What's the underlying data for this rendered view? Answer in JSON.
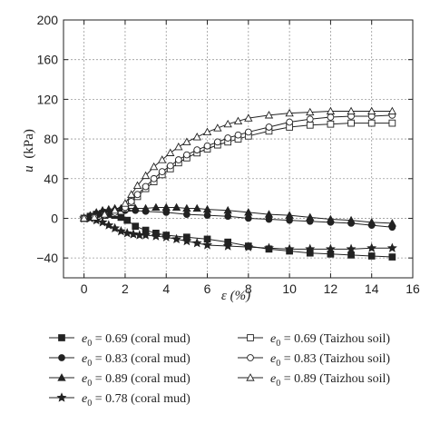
{
  "chart_data": {
    "type": "line",
    "xlabel": "ε (%)",
    "ylabel_symbol": "u",
    "ylabel_unit": "(kPa)",
    "xlim": [
      -1,
      16
    ],
    "ylim": [
      -60,
      200
    ],
    "xticks": [
      0,
      2,
      4,
      6,
      8,
      10,
      12,
      14,
      16
    ],
    "yticks": [
      -40,
      0,
      40,
      80,
      120,
      160,
      200
    ],
    "grid": true,
    "legend": {
      "placement": "bottom",
      "columns": 2
    },
    "series": [
      {
        "name": "e0 = 0.69 (coral mud)",
        "label_symbol": "e",
        "label_subscript": "0",
        "label_text": " = 0.69 (coral mud)",
        "marker": "square",
        "filled": true,
        "x": [
          0,
          0.3,
          0.6,
          0.9,
          1.2,
          1.5,
          1.8,
          2.1,
          2.5,
          3,
          3.5,
          4,
          5,
          6,
          7,
          8,
          9,
          10,
          11,
          12,
          13,
          14,
          15
        ],
        "y": [
          0,
          2,
          4,
          5,
          4,
          3,
          1,
          -2,
          -8,
          -12,
          -15,
          -17,
          -19,
          -21,
          -24,
          -28,
          -31,
          -33,
          -35,
          -36,
          -37,
          -38,
          -39
        ]
      },
      {
        "name": "e0 = 0.83 (coral mud)",
        "label_symbol": "e",
        "label_subscript": "0",
        "label_text": " = 0.83 (coral mud)",
        "marker": "circle",
        "filled": true,
        "x": [
          0,
          0.3,
          0.6,
          1,
          1.5,
          2,
          2.5,
          3,
          4,
          5,
          6,
          7,
          8,
          9,
          10,
          11,
          12,
          13,
          14,
          15
        ],
        "y": [
          0,
          2,
          4,
          6,
          7,
          8,
          8,
          7,
          6,
          4,
          3,
          2,
          0,
          -1,
          -2,
          -3,
          -4,
          -5,
          -7,
          -9
        ]
      },
      {
        "name": "e0 = 0.89 (coral mud)",
        "label_symbol": "e",
        "label_subscript": "0",
        "label_text": " = 0.89 (coral mud)",
        "marker": "triangle",
        "filled": true,
        "x": [
          0,
          0.3,
          0.6,
          0.9,
          1.2,
          1.5,
          1.8,
          2.1,
          2.5,
          3,
          3.5,
          4,
          4.5,
          5,
          5.5,
          6,
          7,
          8,
          9,
          10,
          11,
          12,
          13,
          14,
          15
        ],
        "y": [
          0,
          3,
          6,
          8,
          9,
          10,
          10,
          10,
          10,
          10,
          11,
          11,
          11,
          10,
          10,
          9,
          8,
          6,
          4,
          3,
          1,
          -1,
          -2,
          -4,
          -5
        ]
      },
      {
        "name": "e0 = 0.78 (coral mud)",
        "label_symbol": "e",
        "label_subscript": "0",
        "label_text": " = 0.78 (coral mud)",
        "marker": "star",
        "filled": true,
        "x": [
          0,
          0.3,
          0.6,
          0.9,
          1.2,
          1.5,
          1.8,
          2.1,
          2.4,
          2.7,
          3,
          3.5,
          4,
          4.5,
          5,
          5.5,
          6,
          7,
          8,
          9,
          10,
          11,
          12,
          13,
          14,
          15
        ],
        "y": [
          0,
          0,
          -2,
          -4,
          -7,
          -10,
          -13,
          -15,
          -16,
          -17,
          -17,
          -18,
          -19,
          -21,
          -23,
          -25,
          -27,
          -28,
          -29,
          -30,
          -31,
          -31,
          -31,
          -31,
          -30,
          -30
        ]
      },
      {
        "name": "e0 = 0.69 (Taizhou soil)",
        "label_symbol": "e",
        "label_subscript": "0",
        "label_text": " = 0.69 (Taizhou soil)",
        "marker": "square",
        "filled": false,
        "x": [
          0,
          0.5,
          1,
          1.5,
          2,
          2.3,
          2.6,
          3,
          3.4,
          3.8,
          4.2,
          4.6,
          5,
          5.5,
          6,
          6.5,
          7,
          7.5,
          8,
          9,
          10,
          11,
          12,
          13,
          14,
          15
        ],
        "y": [
          0,
          1,
          3,
          5,
          10,
          16,
          22,
          30,
          37,
          44,
          50,
          56,
          61,
          66,
          70,
          74,
          77,
          80,
          83,
          88,
          92,
          94,
          95,
          96,
          96,
          96
        ]
      },
      {
        "name": "e0 = 0.83 (Taizhou soil)",
        "label_symbol": "e",
        "label_subscript": "0",
        "label_text": " = 0.83 (Taizhou soil)",
        "marker": "circle",
        "filled": false,
        "x": [
          0,
          0.5,
          1,
          1.5,
          2,
          2.3,
          2.6,
          3,
          3.4,
          3.8,
          4.2,
          4.6,
          5,
          5.5,
          6,
          6.5,
          7,
          7.5,
          8,
          9,
          10,
          11,
          12,
          13,
          14,
          15
        ],
        "y": [
          0,
          1,
          3,
          6,
          11,
          17,
          24,
          32,
          40,
          47,
          53,
          59,
          64,
          69,
          73,
          77,
          81,
          84,
          87,
          92,
          97,
          100,
          102,
          103,
          103,
          104
        ]
      },
      {
        "name": "e0 = 0.89 (Taizhou soil)",
        "label_symbol": "e",
        "label_subscript": "0",
        "label_text": " = 0.89 (Taizhou soil)",
        "marker": "triangle",
        "filled": false,
        "x": [
          0,
          0.5,
          1,
          1.5,
          2,
          2.3,
          2.6,
          3,
          3.4,
          3.8,
          4.2,
          4.6,
          5,
          5.5,
          6,
          6.5,
          7,
          7.5,
          8,
          9,
          10,
          11,
          12,
          13,
          14,
          15
        ],
        "y": [
          0,
          1,
          4,
          8,
          15,
          24,
          33,
          43,
          52,
          59,
          66,
          72,
          77,
          82,
          87,
          91,
          95,
          98,
          101,
          104,
          106,
          107,
          108,
          108,
          108,
          108
        ]
      }
    ]
  }
}
